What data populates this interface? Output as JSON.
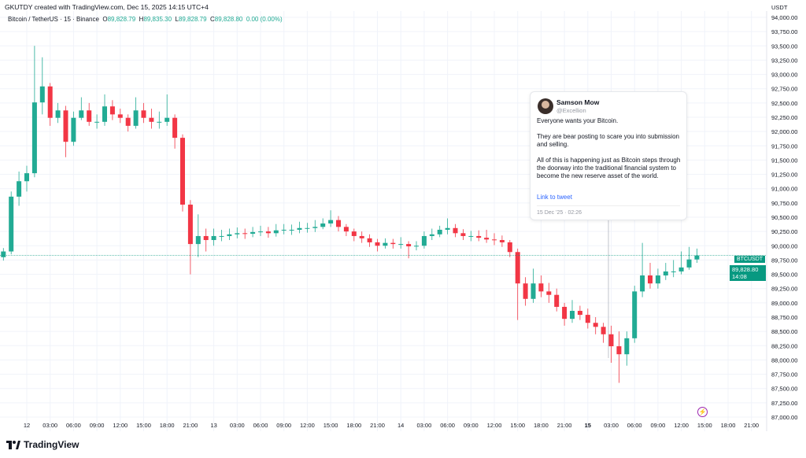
{
  "credit": "GKUTDY created with TradingView.com, Dec 15, 2025 14:15 UTC+4",
  "legend": {
    "symbol": "Bitcoin / TetherUS · 15 · Binance",
    "o_label": "O",
    "o": "89,828.79",
    "h_label": "H",
    "h": "89,835.30",
    "l_label": "L",
    "l": "89,828.79",
    "c_label": "C",
    "c": "89,828.80",
    "change": "0.00 (0.00%)"
  },
  "price_tag": {
    "symbol": "BTCUSDT",
    "price": "89,828.80",
    "countdown": "14:08"
  },
  "tweet": {
    "author": "Samson Mow",
    "handle": "@Excellion",
    "paragraphs": [
      "Everyone wants your Bitcoin.",
      "They are bear posting to scare you into submission and selling.",
      "All of this is happening just as Bitcoin steps through the doorway into the traditional financial system to become the new reserve asset of the world."
    ],
    "link": "Link to tweet",
    "date": "15 Dec '25 · 02:26"
  },
  "brand": "TradingView",
  "colors": {
    "up": "#22ab94",
    "down": "#f23645",
    "last_price": "#089981",
    "alert": "#9c27b0"
  },
  "chart_data": {
    "type": "candlestick",
    "title": "",
    "y_unit": "USDT",
    "ylim": [
      87000,
      94000
    ],
    "grid": true,
    "y_ticks": [
      "94,000.00",
      "93,750.00",
      "93,500.00",
      "93,250.00",
      "93,000.00",
      "92,750.00",
      "92,500.00",
      "92,250.00",
      "92,000.00",
      "91,750.00",
      "91,500.00",
      "91,250.00",
      "91,000.00",
      "90,750.00",
      "90,500.00",
      "90,250.00",
      "90,000.00",
      "89,750.00",
      "89,500.00",
      "89,250.00",
      "89,000.00",
      "88,750.00",
      "88,500.00",
      "88,250.00",
      "88,000.00",
      "87,750.00",
      "87,500.00",
      "87,250.00",
      "87,000.00"
    ],
    "x_ticks": [
      "12",
      "03:00",
      "06:00",
      "09:00",
      "12:00",
      "15:00",
      "18:00",
      "21:00",
      "13",
      "03:00",
      "06:00",
      "09:00",
      "12:00",
      "15:00",
      "18:00",
      "21:00",
      "14",
      "03:00",
      "06:00",
      "09:00",
      "12:00",
      "15:00",
      "18:00",
      "21:00",
      "15",
      "03:00",
      "06:00",
      "09:00",
      "12:00",
      "15:00",
      "18:00",
      "21:00"
    ],
    "last_price": 89828.8,
    "times": [
      "11 21:00",
      "11 22:00",
      "11 23:00",
      "12 00:00",
      "12 01:00",
      "12 02:00",
      "12 03:00",
      "12 04:00",
      "12 05:00",
      "12 06:00",
      "12 07:00",
      "12 08:00",
      "12 09:00",
      "12 10:00",
      "12 11:00",
      "12 12:00",
      "12 13:00",
      "12 14:00",
      "12 15:00",
      "12 16:00",
      "12 17:00",
      "12 18:00",
      "12 19:00",
      "12 20:00",
      "12 21:00",
      "12 22:00",
      "12 23:00",
      "13 00:00",
      "13 01:00",
      "13 02:00",
      "13 03:00",
      "13 04:00",
      "13 05:00",
      "13 06:00",
      "13 07:00",
      "13 08:00",
      "13 09:00",
      "13 10:00",
      "13 11:00",
      "13 12:00",
      "13 13:00",
      "13 14:00",
      "13 15:00",
      "13 16:00",
      "13 17:00",
      "13 18:00",
      "13 19:00",
      "13 20:00",
      "13 21:00",
      "13 22:00",
      "13 23:00",
      "14 00:00",
      "14 01:00",
      "14 02:00",
      "14 03:00",
      "14 04:00",
      "14 05:00",
      "14 06:00",
      "14 07:00",
      "14 08:00",
      "14 09:00",
      "14 10:00",
      "14 11:00",
      "14 12:00",
      "14 13:00",
      "14 14:00",
      "14 15:00",
      "14 16:00",
      "14 17:00",
      "14 18:00",
      "14 19:00",
      "14 20:00",
      "14 21:00",
      "14 22:00",
      "14 23:00",
      "15 00:00",
      "15 01:00",
      "15 02:00",
      "15 03:00",
      "15 04:00",
      "15 05:00",
      "15 06:00",
      "15 07:00",
      "15 08:00",
      "15 09:00",
      "15 10:00",
      "15 11:00",
      "15 12:00",
      "15 13:00",
      "15 14:00"
    ],
    "ohlc": [
      [
        89800,
        89960,
        89740,
        89900
      ],
      [
        89900,
        90950,
        89850,
        90860
      ],
      [
        90860,
        91300,
        90700,
        91130
      ],
      [
        91130,
        91400,
        90950,
        91270
      ],
      [
        91270,
        93500,
        91200,
        92510
      ],
      [
        92510,
        93300,
        92300,
        92790
      ],
      [
        92790,
        92850,
        92100,
        92240
      ],
      [
        92240,
        92500,
        92150,
        92370
      ],
      [
        92370,
        92450,
        91550,
        91820
      ],
      [
        91820,
        92350,
        91750,
        92240
      ],
      [
        92240,
        92600,
        92200,
        92370
      ],
      [
        92370,
        92500,
        92100,
        92170
      ],
      [
        92170,
        92300,
        92050,
        92170
      ],
      [
        92170,
        92650,
        92100,
        92440
      ],
      [
        92440,
        92550,
        92200,
        92300
      ],
      [
        92300,
        92400,
        92150,
        92240
      ],
      [
        92240,
        92300,
        92000,
        92100
      ],
      [
        92100,
        92600,
        92050,
        92370
      ],
      [
        92370,
        92500,
        92150,
        92240
      ],
      [
        92240,
        92400,
        92050,
        92170
      ],
      [
        92170,
        92350,
        92050,
        92170
      ],
      [
        92170,
        92650,
        92100,
        92240
      ],
      [
        92240,
        92300,
        91700,
        91890
      ],
      [
        91890,
        91950,
        90600,
        90720
      ],
      [
        90720,
        90800,
        89500,
        90030
      ],
      [
        90030,
        90550,
        89800,
        90170
      ],
      [
        90170,
        90300,
        89900,
        90100
      ],
      [
        90100,
        90300,
        90000,
        90170
      ],
      [
        90170,
        90280,
        90080,
        90170
      ],
      [
        90170,
        90300,
        90100,
        90200
      ],
      [
        90200,
        90320,
        90130,
        90220
      ],
      [
        90220,
        90300,
        90120,
        90210
      ],
      [
        90210,
        90330,
        90150,
        90240
      ],
      [
        90240,
        90350,
        90170,
        90250
      ],
      [
        90250,
        90330,
        90140,
        90220
      ],
      [
        90220,
        90380,
        90160,
        90270
      ],
      [
        90270,
        90380,
        90200,
        90280
      ],
      [
        90280,
        90370,
        90190,
        90280
      ],
      [
        90280,
        90420,
        90220,
        90310
      ],
      [
        90310,
        90400,
        90230,
        90310
      ],
      [
        90310,
        90450,
        90240,
        90330
      ],
      [
        90330,
        90480,
        90290,
        90390
      ],
      [
        90390,
        90620,
        90330,
        90450
      ],
      [
        90450,
        90520,
        90250,
        90330
      ],
      [
        90330,
        90380,
        90170,
        90250
      ],
      [
        90250,
        90300,
        90080,
        90170
      ],
      [
        90170,
        90250,
        90050,
        90130
      ],
      [
        90130,
        90200,
        89980,
        90060
      ],
      [
        90060,
        90120,
        89900,
        90000
      ],
      [
        90000,
        90130,
        89950,
        90050
      ],
      [
        90050,
        90120,
        89950,
        90030
      ],
      [
        90030,
        90150,
        89950,
        90030
      ],
      [
        90030,
        90080,
        89780,
        89990
      ],
      [
        89990,
        90080,
        89920,
        90000
      ],
      [
        90000,
        90250,
        89950,
        90170
      ],
      [
        90170,
        90300,
        90100,
        90200
      ],
      [
        90200,
        90350,
        90150,
        90280
      ],
      [
        90280,
        90480,
        90200,
        90310
      ],
      [
        90310,
        90380,
        90150,
        90220
      ],
      [
        90220,
        90290,
        90100,
        90170
      ],
      [
        90170,
        90260,
        90080,
        90170
      ],
      [
        90170,
        90270,
        90080,
        90140
      ],
      [
        90140,
        90280,
        90050,
        90110
      ],
      [
        90110,
        90220,
        90010,
        90100
      ],
      [
        90100,
        90180,
        89980,
        90060
      ],
      [
        90060,
        90100,
        89800,
        89890
      ],
      [
        89890,
        89950,
        88700,
        89340
      ],
      [
        89340,
        89450,
        88950,
        89070
      ],
      [
        89070,
        89600,
        89000,
        89340
      ],
      [
        89340,
        89480,
        89100,
        89200
      ],
      [
        89200,
        89350,
        89000,
        89140
      ],
      [
        89140,
        89250,
        88850,
        88930
      ],
      [
        88930,
        89000,
        88600,
        88720
      ],
      [
        88720,
        89050,
        88650,
        88860
      ],
      [
        88860,
        88950,
        88700,
        88790
      ],
      [
        88790,
        88900,
        88550,
        88650
      ],
      [
        88650,
        88750,
        88450,
        88580
      ],
      [
        88580,
        88650,
        88300,
        88450
      ],
      [
        88450,
        88600,
        87950,
        88240
      ],
      [
        88240,
        88500,
        87600,
        88100
      ],
      [
        88100,
        88500,
        87900,
        88380
      ],
      [
        88380,
        89300,
        88300,
        89200
      ],
      [
        89200,
        90050,
        89100,
        89480
      ],
      [
        89480,
        89700,
        89250,
        89340
      ],
      [
        89340,
        89600,
        89250,
        89480
      ],
      [
        89480,
        89700,
        89400,
        89550
      ],
      [
        89550,
        89750,
        89450,
        89550
      ],
      [
        89550,
        89900,
        89500,
        89620
      ],
      [
        89620,
        89980,
        89580,
        89760
      ],
      [
        89760,
        89950,
        89700,
        89829
      ]
    ]
  }
}
